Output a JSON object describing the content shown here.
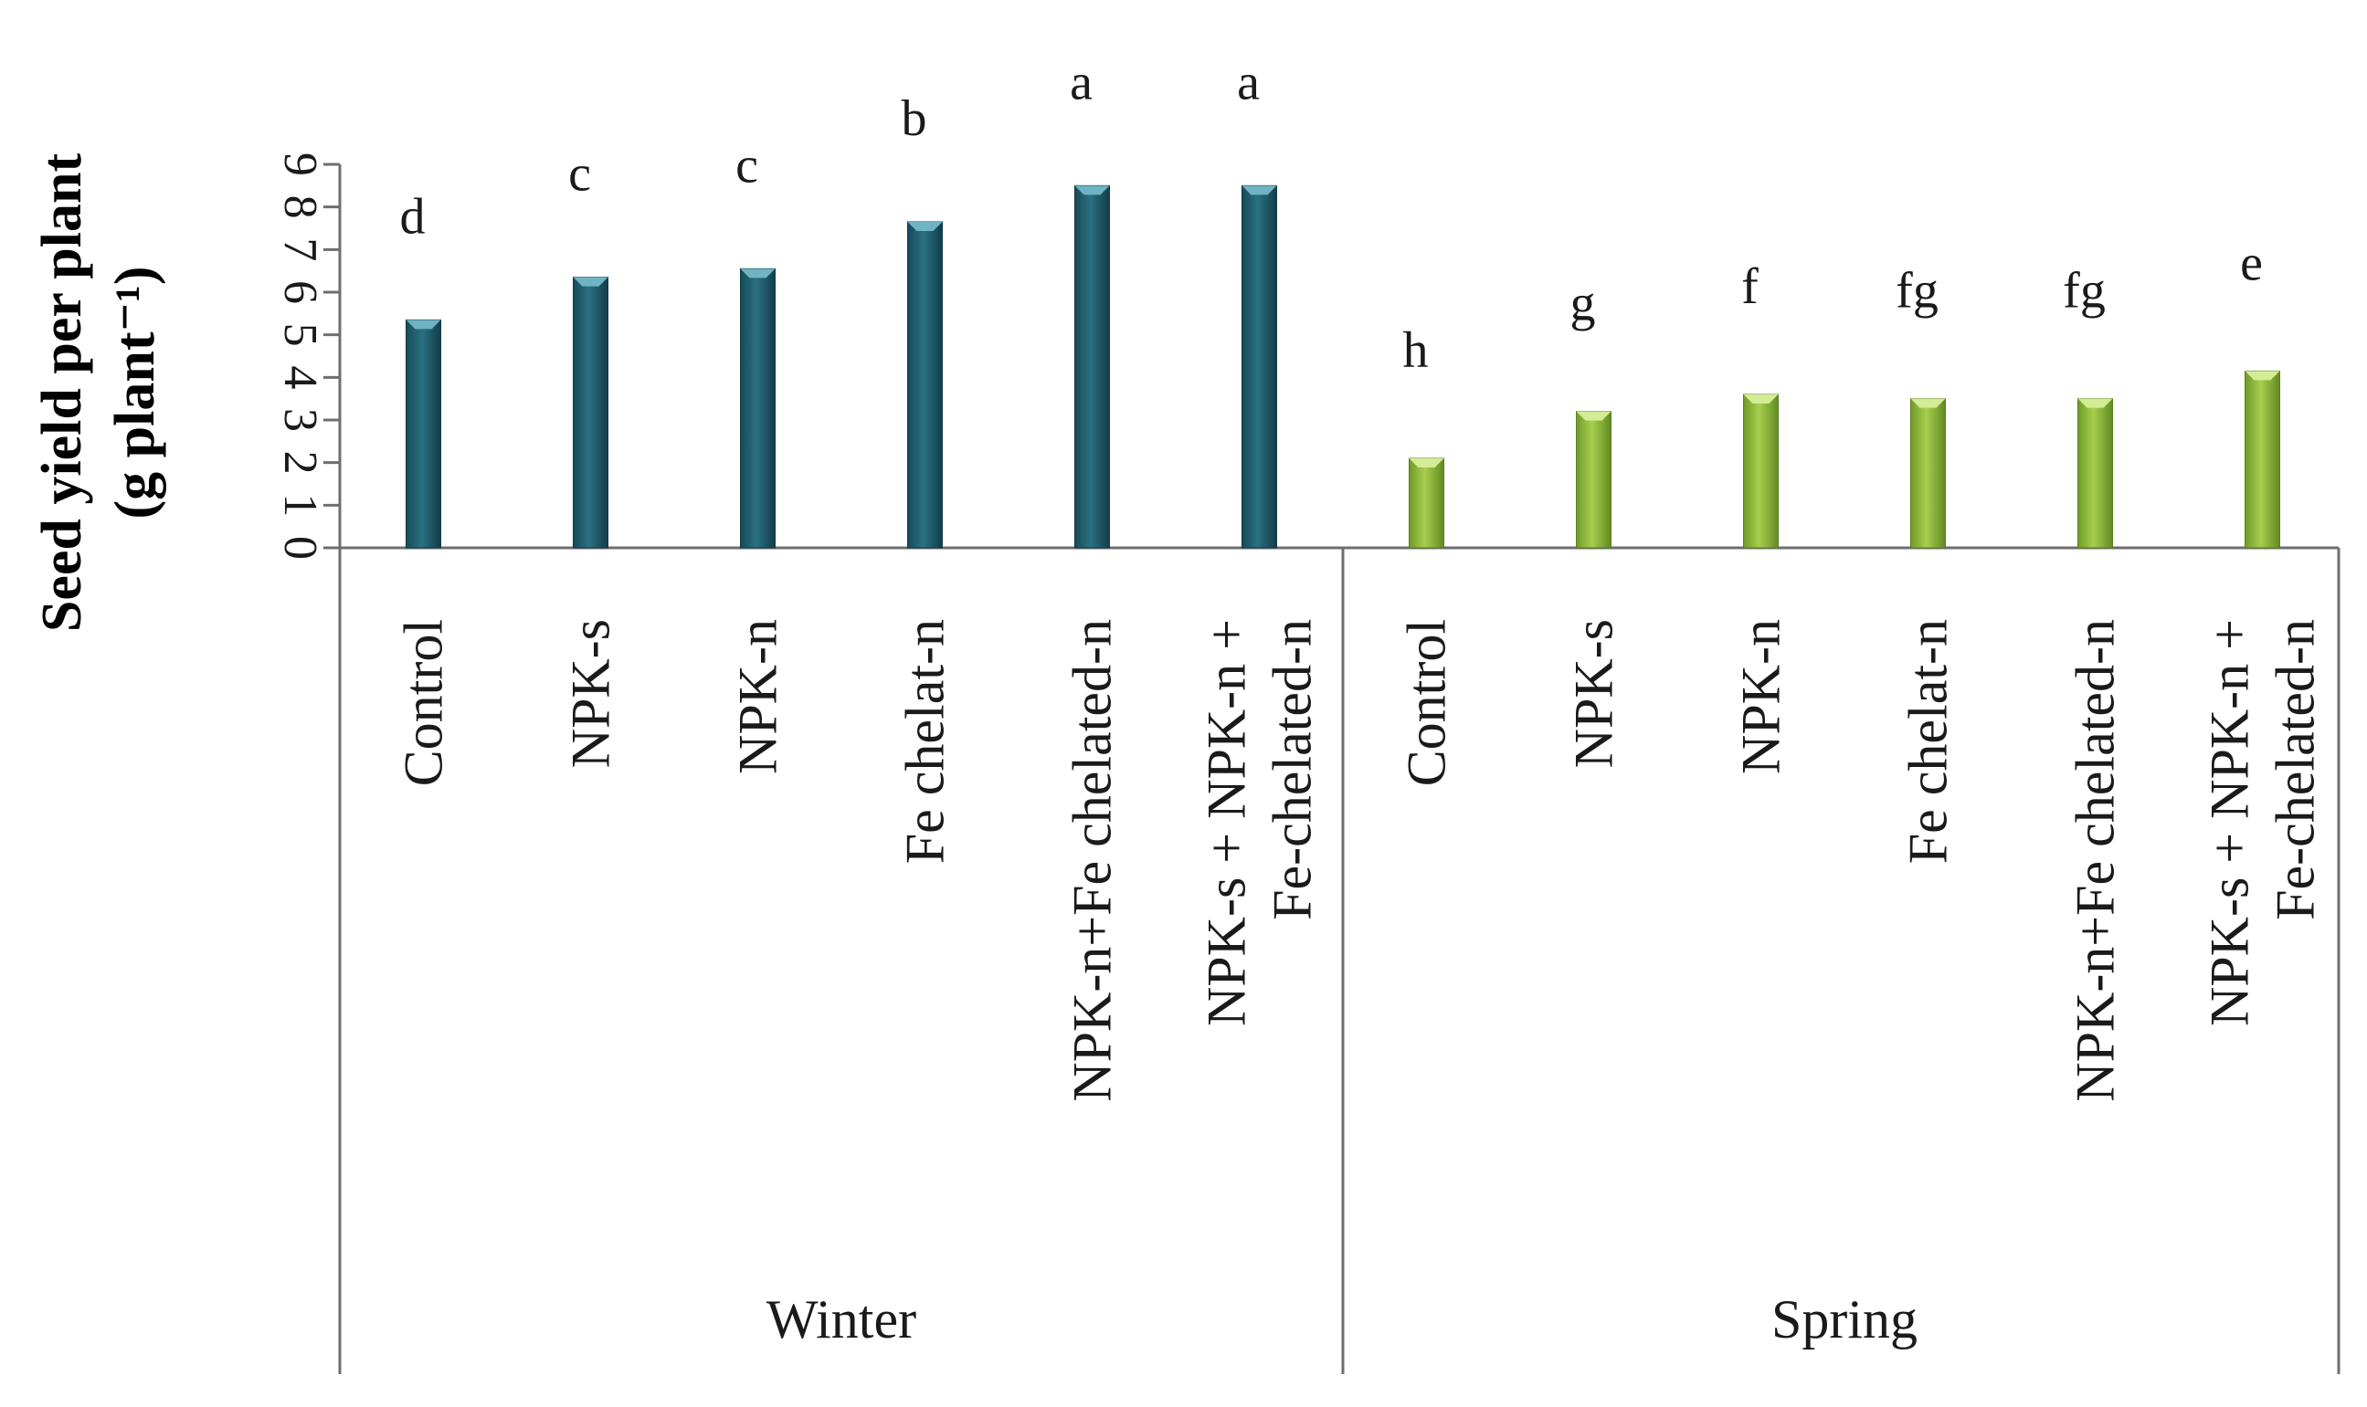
{
  "chart_data": {
    "type": "bar",
    "ylabel_line1": "Seed yield per plant",
    "ylabel_line2": "(g plant⁻¹)",
    "xlabel": "",
    "ylim": [
      0,
      9
    ],
    "yticks": [
      "0",
      "1",
      "2",
      "3",
      "4",
      "5",
      "6",
      "7",
      "8",
      "9"
    ],
    "grid": false,
    "legend": "none",
    "groups": [
      {
        "name": "Winter",
        "color": "#1f5d6e",
        "categories": [
          [
            "Control"
          ],
          [
            "NPK-s"
          ],
          [
            "NPK-n"
          ],
          [
            "Fe chelat-n"
          ],
          [
            "NPK-n+Fe chelated-n"
          ],
          [
            "NPK-s + NPK-n  +",
            "Fe-chelated-n"
          ]
        ],
        "values": [
          5.35,
          6.35,
          6.55,
          7.65,
          8.5,
          8.5
        ],
        "letters": [
          "d",
          "c",
          "c",
          "b",
          "a",
          "a"
        ]
      },
      {
        "name": "Spring",
        "color": "#8db53a",
        "categories": [
          [
            "Control"
          ],
          [
            "NPK-s"
          ],
          [
            "NPK-n"
          ],
          [
            "Fe chelat-n"
          ],
          [
            "NPK-n+Fe chelated-n"
          ],
          [
            "NPK-s + NPK-n  +",
            "Fe-chelated-n"
          ]
        ],
        "values": [
          2.1,
          3.2,
          3.6,
          3.5,
          3.5,
          4.15
        ],
        "letters": [
          "h",
          "g",
          "f",
          "fg",
          "fg",
          "e"
        ]
      }
    ]
  }
}
